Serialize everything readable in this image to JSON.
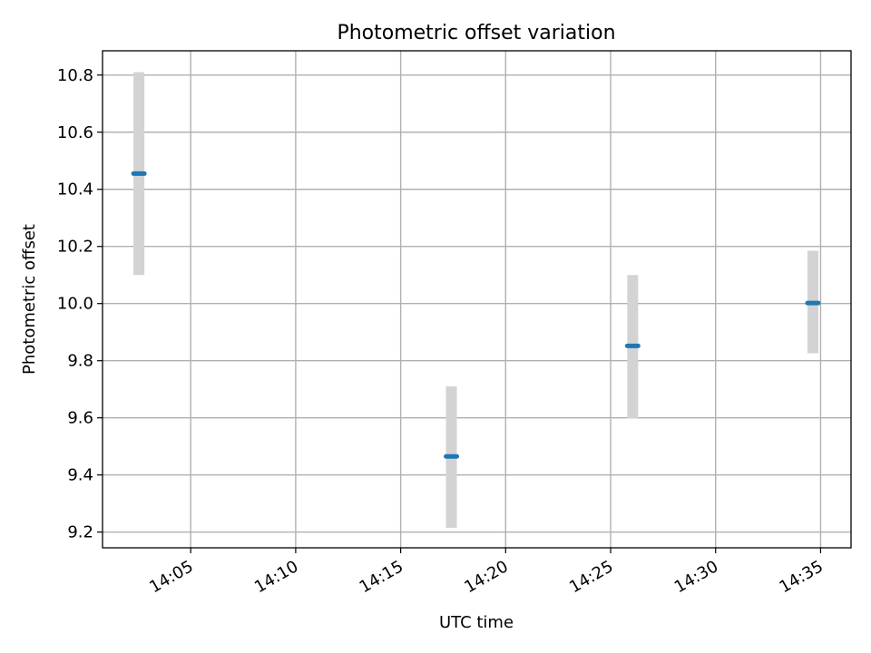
{
  "chart_data": {
    "type": "scatter",
    "title": "Photometric offset variation",
    "xlabel": "UTC time",
    "ylabel": "Photometric offset",
    "x_tick_labels": [
      "14:05",
      "14:10",
      "14:15",
      "14:20",
      "14:25",
      "14:30",
      "14:35"
    ],
    "x_ticks_minutes": [
      5,
      10,
      15,
      20,
      25,
      30,
      35
    ],
    "y_ticks": [
      "9.2",
      "9.4",
      "9.6",
      "9.8",
      "10.0",
      "10.2",
      "10.4",
      "10.6",
      "10.8"
    ],
    "xlim_minutes": [
      0.8,
      36.45
    ],
    "ylim": [
      9.145,
      10.885
    ],
    "grid": true,
    "series": [
      {
        "points": [
          {
            "time": "14:02:32",
            "y": 10.455,
            "err_low": 10.1,
            "err_high": 10.81
          },
          {
            "time": "14:17:25",
            "y": 9.465,
            "err_low": 9.215,
            "err_high": 9.71
          },
          {
            "time": "14:26:03",
            "y": 9.852,
            "err_low": 9.598,
            "err_high": 10.1
          },
          {
            "time": "14:34:38",
            "y": 10.002,
            "err_low": 9.826,
            "err_high": 10.185
          }
        ]
      }
    ],
    "colors": {
      "marker": "#1f77b4",
      "errorbar": "#d3d3d3",
      "grid": "#b0b0b0"
    }
  }
}
